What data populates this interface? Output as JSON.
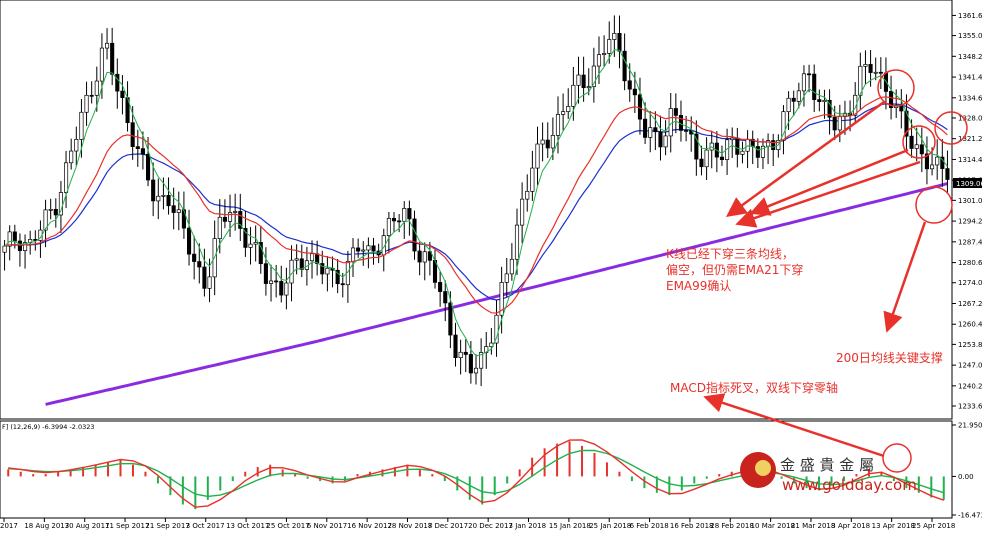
{
  "indicator_label": "F] (12,26,9) -6.3994 -2.0323",
  "watermark": {
    "brand": "金 盛 貴 金 屬",
    "url": "www.goldday.com"
  },
  "chart_data": [
    {
      "type": "candlestick",
      "title": "",
      "price_label": "1309.06",
      "ylim": [
        1230,
        1366
      ],
      "yticks": [
        "1361.60",
        "1355.00",
        "1348.20",
        "1341.40",
        "1334.60",
        "1328.00",
        "1321.20",
        "1314.40",
        "1307.60",
        "1301.00",
        "1294.20",
        "1287.40",
        "1280.60",
        "1274.00",
        "1267.20",
        "1260.40",
        "1253.80",
        "1247.00",
        "1240.20",
        "1233.60"
      ],
      "xticks": [
        "2017",
        "18 Aug 2017",
        "30 Aug 2017",
        "11 Sep 2017",
        "21 Sep 2017",
        "3 Oct 2017",
        "13 Oct 2017",
        "25 Oct 2017",
        "6 Nov 2017",
        "16 Nov 2017",
        "28 Nov 2017",
        "8 Dec 2017",
        "20 Dec 2017",
        "3 Jan 2018",
        "15 Jan 2018",
        "25 Jan 2018",
        "6 Feb 2018",
        "16 Feb 2018",
        "28 Feb 2018",
        "10 Mar 2018",
        "21 Mar 2018",
        "3 Apr 2018",
        "13 Apr 2018",
        "25 Apr 2018"
      ],
      "close_path": [
        1284,
        1290,
        1286,
        1292,
        1300,
        1312,
        1326,
        1340,
        1352,
        1336,
        1326,
        1312,
        1300,
        1304,
        1292,
        1282,
        1274,
        1290,
        1300,
        1290,
        1282,
        1276,
        1272,
        1278,
        1284,
        1280,
        1274,
        1278,
        1286,
        1282,
        1290,
        1294,
        1296,
        1284,
        1278,
        1266,
        1252,
        1244,
        1250,
        1262,
        1276,
        1298,
        1314,
        1318,
        1328,
        1336,
        1338,
        1346,
        1354,
        1348,
        1336,
        1322,
        1320,
        1330,
        1324,
        1316,
        1318,
        1314,
        1322,
        1318,
        1316,
        1320,
        1328,
        1336,
        1344,
        1330,
        1326,
        1330,
        1340,
        1346,
        1340,
        1328,
        1322,
        1316,
        1310,
        1312
      ],
      "series": [
        {
          "name": "EMA5",
          "color": "#22b14c"
        },
        {
          "name": "EMA21",
          "color": "#e8312a"
        },
        {
          "name": "EMA99",
          "color": "#1c2fd1"
        },
        {
          "name": "EMA200",
          "color": "#8a2be2"
        }
      ],
      "annotations": [
        "K线已经下穿三条均线，偏空，但仍需EMA21下穿EMA99确认",
        "200日均线关键支撑"
      ]
    },
    {
      "type": "macd",
      "params": "(12,26,9)",
      "macd": -6.3994,
      "signal": -2.0323,
      "ylim": [
        -16.4738,
        21.9506
      ],
      "yticks": [
        "21.9506",
        "0.00",
        "-16.4738"
      ],
      "histogram": [
        3,
        2,
        1,
        1,
        2,
        3,
        4,
        5,
        6,
        7,
        5,
        2,
        -3,
        -8,
        -12,
        -14,
        -10,
        -6,
        -2,
        2,
        4,
        5,
        3,
        1,
        -1,
        -2,
        -3,
        -2,
        1,
        2,
        3,
        4,
        5,
        3,
        1,
        -2,
        -6,
        -10,
        -12,
        -8,
        -3,
        3,
        8,
        12,
        14,
        15,
        13,
        10,
        6,
        2,
        -2,
        -5,
        -7,
        -8,
        -6,
        -3,
        -1,
        1,
        2,
        3,
        4,
        2,
        -1,
        -3,
        -5,
        -6,
        -4,
        -2,
        1,
        3,
        2,
        -2,
        -5,
        -7,
        -9,
        -10
      ],
      "annotations": [
        "MACD指标死叉，双线下穿零轴"
      ]
    }
  ]
}
